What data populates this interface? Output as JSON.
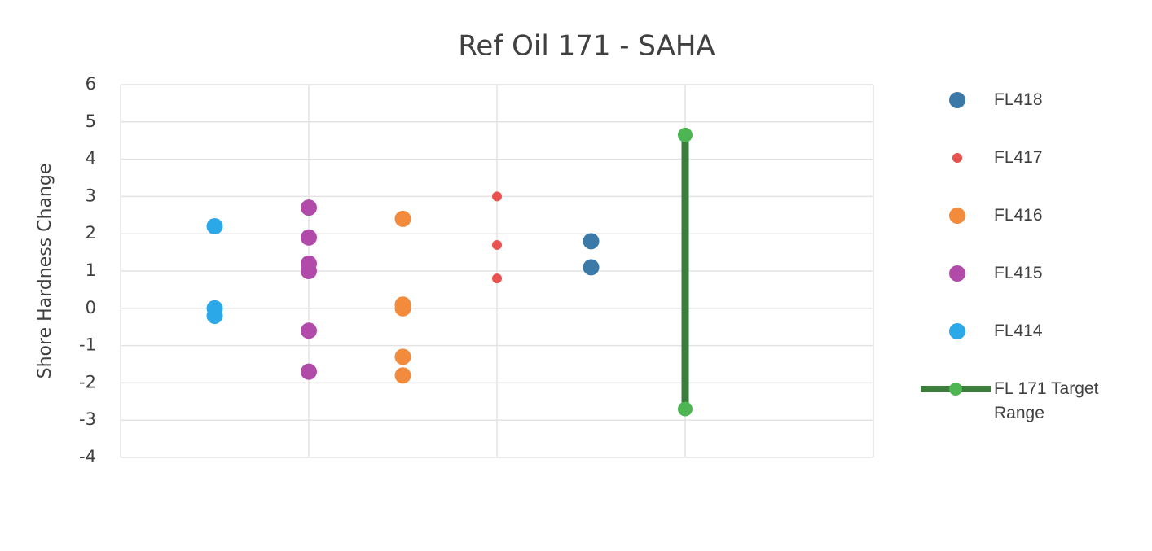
{
  "chart_data": {
    "type": "scatter",
    "title": "Ref Oil 171 - SAHA",
    "y_label": "Shore Hardness Change",
    "xlim": [
      0,
      4
    ],
    "xticks": [
      0,
      1,
      2,
      3,
      4
    ],
    "ylim": [
      -4,
      6
    ],
    "yticks": [
      -4,
      -3,
      -2,
      -1,
      0,
      1,
      2,
      3,
      4,
      5,
      6
    ],
    "grid": true,
    "series": [
      {
        "name": "FL418",
        "color": "#3b7aa8",
        "x": [
          2.5,
          2.5
        ],
        "values": [
          1.8,
          1.1
        ]
      },
      {
        "name": "FL417",
        "color": "#e9524e",
        "x": [
          2,
          2,
          2
        ],
        "values": [
          3.0,
          1.7,
          0.8
        ]
      },
      {
        "name": "FL416",
        "color": "#f38b3c",
        "x": [
          1.5,
          1.5,
          1.5,
          1.5,
          1.5
        ],
        "values": [
          2.4,
          0.1,
          0,
          -1.3,
          -1.8
        ]
      },
      {
        "name": "FL415",
        "color": "#b24aa9",
        "x": [
          1,
          1,
          1,
          1,
          1,
          1
        ],
        "values": [
          2.7,
          1.9,
          1.2,
          1.0,
          -0.6,
          -1.7
        ]
      },
      {
        "name": "FL414",
        "color": "#2ba8e8",
        "x": [
          0.5,
          0.5,
          0.5
        ],
        "values": [
          2.2,
          0,
          -0.2
        ]
      },
      {
        "name": "FL 171 Target Range",
        "type": "line",
        "color": "#3b7d3b",
        "marker_color": "#4db552",
        "x": [
          3,
          3
        ],
        "values": [
          4.65,
          -2.7
        ]
      }
    ]
  }
}
